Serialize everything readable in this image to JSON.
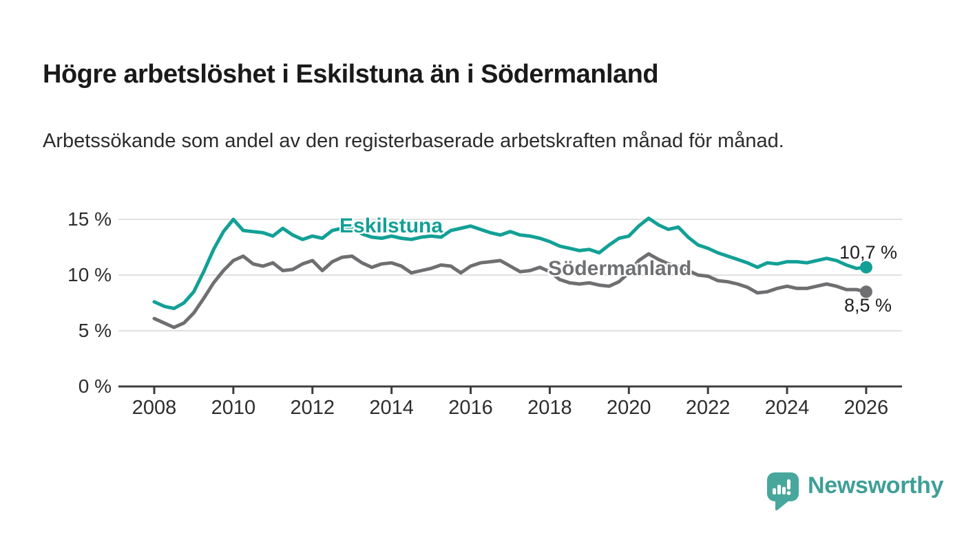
{
  "header": {
    "title": "Högre arbetslöshet i Eskilstuna än i Södermanland",
    "subtitle": "Arbetssökande som andel av den registerbaserade arbetskraften månad för månad."
  },
  "chart_data": {
    "type": "line",
    "title": "Högre arbetslöshet i Eskilstuna än i Södermanland",
    "xlabel": "",
    "ylabel": "",
    "unit": "%",
    "grid": "horizontal",
    "legend_position": "inline-labels",
    "xlim": [
      2007.1,
      2026.9
    ],
    "ylim": [
      0,
      16.5
    ],
    "x_ticks": [
      2008,
      2010,
      2012,
      2014,
      2016,
      2018,
      2020,
      2022,
      2024,
      2026
    ],
    "x_tick_labels": [
      "2008",
      "2010",
      "2012",
      "2014",
      "2016",
      "2018",
      "2020",
      "2022",
      "2024",
      "2026"
    ],
    "y_ticks": [
      0,
      5,
      10,
      15
    ],
    "y_tick_labels": [
      "0 %",
      "5 %",
      "10 %",
      "15 %"
    ],
    "x": [
      2008,
      2008.25,
      2008.5,
      2008.75,
      2009,
      2009.25,
      2009.5,
      2009.75,
      2010,
      2010.25,
      2010.5,
      2010.75,
      2011,
      2011.25,
      2011.5,
      2011.75,
      2012,
      2012.25,
      2012.5,
      2012.75,
      2013,
      2013.25,
      2013.5,
      2013.75,
      2014,
      2014.25,
      2014.5,
      2014.75,
      2015,
      2015.25,
      2015.5,
      2015.75,
      2016,
      2016.25,
      2016.5,
      2016.75,
      2017,
      2017.25,
      2017.5,
      2017.75,
      2018,
      2018.25,
      2018.5,
      2018.75,
      2019,
      2019.25,
      2019.5,
      2019.75,
      2020,
      2020.25,
      2020.5,
      2020.75,
      2021,
      2021.25,
      2021.5,
      2021.75,
      2022,
      2022.25,
      2022.5,
      2022.75,
      2023,
      2023.25,
      2023.5,
      2023.75,
      2024,
      2024.25,
      2024.5,
      2024.75,
      2025,
      2025.25,
      2025.5,
      2025.75,
      2026
    ],
    "series": [
      {
        "name": "Eskilstuna",
        "color": "#12a096",
        "end_label": "10,7 %",
        "end_value": 10.7,
        "values": [
          7.6,
          7.2,
          7.0,
          7.5,
          8.5,
          10.3,
          12.3,
          13.9,
          15.0,
          14.0,
          13.9,
          13.8,
          13.5,
          14.2,
          13.6,
          13.2,
          13.5,
          13.3,
          14.0,
          14.2,
          14.3,
          13.7,
          13.4,
          13.3,
          13.5,
          13.3,
          13.2,
          13.4,
          13.5,
          13.4,
          14.0,
          14.2,
          14.4,
          14.1,
          13.8,
          13.6,
          13.9,
          13.6,
          13.5,
          13.3,
          13.0,
          12.6,
          12.4,
          12.2,
          12.3,
          12.0,
          12.7,
          13.3,
          13.5,
          14.4,
          15.1,
          14.5,
          14.1,
          14.3,
          13.4,
          12.7,
          12.4,
          12.0,
          11.7,
          11.4,
          11.1,
          10.7,
          11.1,
          11.0,
          11.2,
          11.2,
          11.1,
          11.3,
          11.5,
          11.3,
          10.9,
          10.6,
          10.7
        ]
      },
      {
        "name": "Södermanland",
        "color": "#6f6f72",
        "end_label": "8,5 %",
        "end_value": 8.5,
        "values": [
          6.1,
          5.7,
          5.3,
          5.7,
          6.6,
          7.9,
          9.3,
          10.4,
          11.3,
          11.7,
          11.0,
          10.8,
          11.1,
          10.4,
          10.5,
          11.0,
          11.3,
          10.4,
          11.2,
          11.6,
          11.7,
          11.1,
          10.7,
          11.0,
          11.1,
          10.8,
          10.2,
          10.4,
          10.6,
          10.9,
          10.8,
          10.2,
          10.8,
          11.1,
          11.2,
          11.3,
          10.8,
          10.3,
          10.4,
          10.7,
          10.3,
          9.6,
          9.3,
          9.2,
          9.3,
          9.1,
          9.0,
          9.4,
          10.2,
          11.3,
          11.9,
          11.4,
          11.0,
          10.8,
          10.4,
          10.0,
          9.9,
          9.5,
          9.4,
          9.2,
          8.9,
          8.4,
          8.5,
          8.8,
          9.0,
          8.8,
          8.8,
          9.0,
          9.2,
          9.0,
          8.7,
          8.7,
          8.5
        ]
      }
    ]
  },
  "footer": {
    "brand": "Newsworthy",
    "brand_color": "#3f9f97",
    "logo_icon": "bar-chart-speech-bubble",
    "logo_color": "#48a79c"
  }
}
